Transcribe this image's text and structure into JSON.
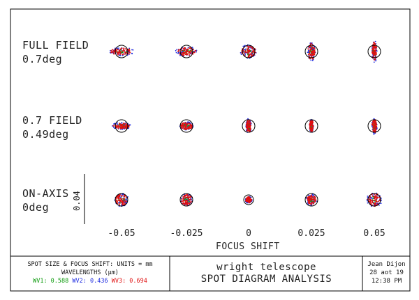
{
  "rows": [
    {
      "title": "FULL FIELD",
      "angle": "0.7deg",
      "spread_x": 1.0,
      "spread_y": 0.35,
      "shape": "hwide"
    },
    {
      "title": "0.7 FIELD",
      "angle": "0.49deg",
      "spread_x": 0.8,
      "spread_y": 0.25,
      "shape": "hwide"
    },
    {
      "title": "ON-AXIS",
      "angle": "0deg",
      "spread_x": 0.6,
      "spread_y": 0.6,
      "shape": "round"
    }
  ],
  "focus_shifts": [
    "-0.05",
    "-0.025",
    "0",
    "0.025",
    "0.05"
  ],
  "focus_axis_title": "FOCUS SHIFT",
  "scale_bar_label": "0.04",
  "info": {
    "units_line": "SPOT SIZE & FOCUS SHIFT: UNITS = mm",
    "wavelengths_line": "WAVELENGTHS (μm)",
    "wv1": "WV1: 0.588",
    "wv2": "WV2: 0.436",
    "wv3": "WV3: 0.694",
    "title_line1": "wright telescope",
    "title_line2": "SPOT DIAGRAM ANALYSIS",
    "author": "Jean Dijon",
    "date": "28 aot 19",
    "time": "12:38 PM"
  },
  "colors": {
    "wv1": "#0b9a0b",
    "wv2": "#1d2be0",
    "wv3": "#e01010",
    "frame": "#000000"
  }
}
